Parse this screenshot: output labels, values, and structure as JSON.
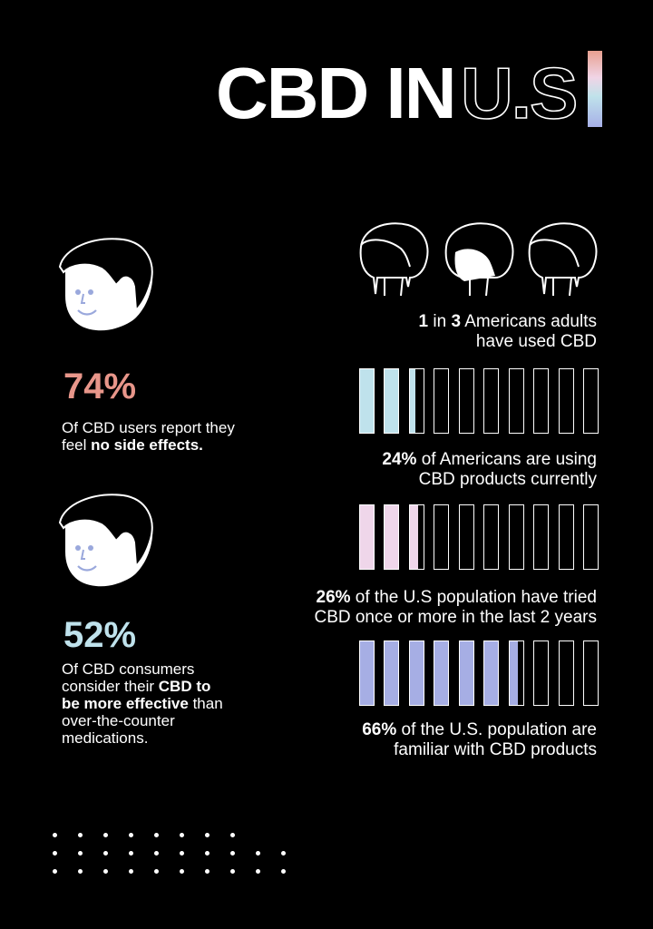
{
  "title": {
    "solid": "CBD IN",
    "outline": "U.S"
  },
  "colors": {
    "salmon": "#e8968a",
    "blue": "#bfe2ec",
    "pink": "#efd6ea",
    "lavender": "#a6aee4"
  },
  "left_stats": [
    {
      "value": "74%",
      "text_plain": "Of CBD users report they feel ",
      "text_bold": "no side effects."
    },
    {
      "value": "52%",
      "line1": "Of CBD consumers",
      "line2a": "consider their ",
      "line2b": "CBD to",
      "line3a": "be more effective",
      "line3b": " than",
      "line4": "over-the-counter",
      "line5": "medications."
    }
  ],
  "heads_caption": {
    "bold1": "1",
    "mid": " in ",
    "bold2": "3",
    "rest": " Americans adults",
    "line2": "have used CBD"
  },
  "bar_stats": [
    {
      "fraction": 0.24,
      "bold": "24%",
      "line1": " of Americans are using",
      "line2": "CBD products currently"
    },
    {
      "fraction": 0.26,
      "bold": "26%",
      "line1": " of the U.S population have tried",
      "line2": "CBD once or more in the last 2 years"
    },
    {
      "fraction": 0.66,
      "bold": "66%",
      "line1": " of the U.S. population are",
      "line2": "familiar with CBD products"
    }
  ]
}
